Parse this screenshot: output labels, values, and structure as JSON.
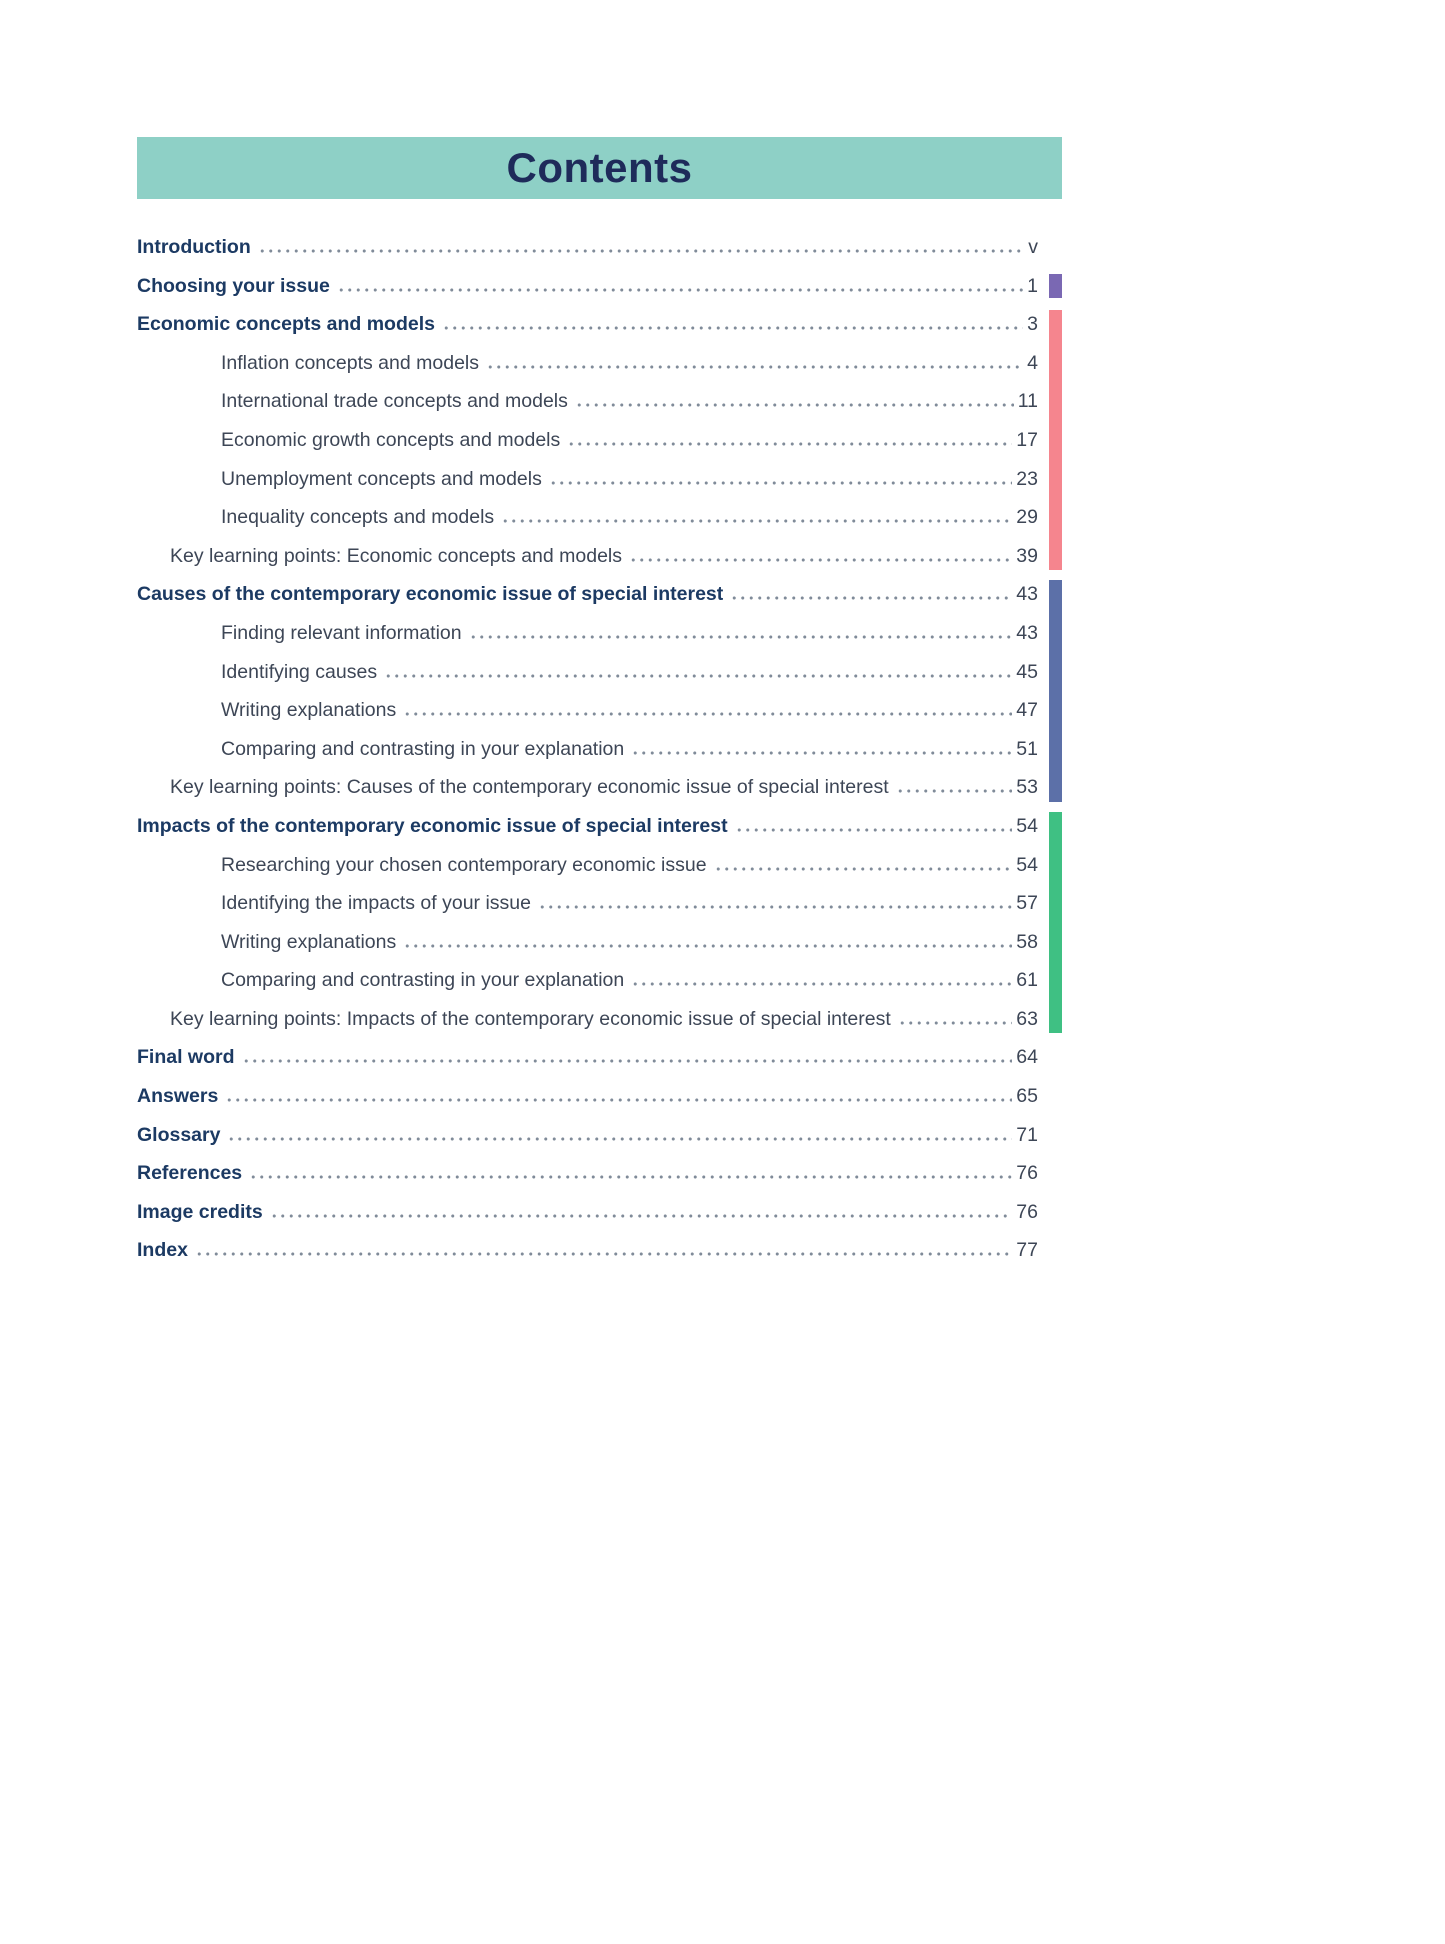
{
  "title": "Contents",
  "colors": {
    "banner": "#8ed0c6",
    "title": "#1e2b5a",
    "heading_text": "#1c3a63",
    "body_text": "#3d4656",
    "dots": "#808b99"
  },
  "toc": {
    "bar_colors": {
      "purple": "#7a68b3",
      "pink": "#f5858e",
      "blue": "#5c70a8",
      "green": "#3fc083"
    },
    "entries": [
      {
        "label": "Introduction",
        "page": "v",
        "level": 0,
        "bar": null
      },
      {
        "label": "Choosing your issue",
        "page": "1",
        "level": 0,
        "bar": "purple"
      },
      {
        "label": "Economic concepts and models",
        "page": "3",
        "level": 0,
        "bar": "pink"
      },
      {
        "label": "Inflation concepts and models",
        "page": "4",
        "level": 2,
        "bar": "pink"
      },
      {
        "label": "International trade concepts and models",
        "page": "11",
        "level": 2,
        "bar": "pink"
      },
      {
        "label": "Economic growth concepts and models",
        "page": "17",
        "level": 2,
        "bar": "pink"
      },
      {
        "label": "Unemployment concepts and models",
        "page": "23",
        "level": 2,
        "bar": "pink"
      },
      {
        "label": "Inequality concepts and models",
        "page": "29",
        "level": 2,
        "bar": "pink"
      },
      {
        "label": "Key learning points: Economic concepts and models",
        "page": "39",
        "level": 1,
        "bar": "pink"
      },
      {
        "label": "Causes of the contemporary economic issue of special interest",
        "page": "43",
        "level": 0,
        "bar": "blue"
      },
      {
        "label": "Finding relevant information",
        "page": "43",
        "level": 2,
        "bar": "blue"
      },
      {
        "label": "Identifying causes",
        "page": "45",
        "level": 2,
        "bar": "blue"
      },
      {
        "label": "Writing explanations",
        "page": "47",
        "level": 2,
        "bar": "blue"
      },
      {
        "label": "Comparing and contrasting in your explanation",
        "page": "51",
        "level": 2,
        "bar": "blue"
      },
      {
        "label": "Key learning points: Causes of the contemporary economic issue of special interest",
        "page": "53",
        "level": 1,
        "bar": "blue"
      },
      {
        "label": "Impacts of the contemporary economic issue of special interest",
        "page": "54",
        "level": 0,
        "bar": "green"
      },
      {
        "label": "Researching your chosen contemporary economic issue",
        "page": "54",
        "level": 2,
        "bar": "green"
      },
      {
        "label": "Identifying the impacts of your issue",
        "page": "57",
        "level": 2,
        "bar": "green"
      },
      {
        "label": "Writing explanations",
        "page": "58",
        "level": 2,
        "bar": "green"
      },
      {
        "label": "Comparing and contrasting in your explanation",
        "page": "61",
        "level": 2,
        "bar": "green"
      },
      {
        "label": "Key learning points: Impacts of the contemporary economic issue of special interest",
        "page": "63",
        "level": 1,
        "bar": "green"
      },
      {
        "label": "Final word",
        "page": "64",
        "level": 0,
        "bar": null
      },
      {
        "label": "Answers",
        "page": "65",
        "level": 0,
        "bar": null
      },
      {
        "label": "Glossary",
        "page": "71",
        "level": 0,
        "bar": null
      },
      {
        "label": "References",
        "page": "76",
        "level": 0,
        "bar": null
      },
      {
        "label": "Image credits",
        "page": "76",
        "level": 0,
        "bar": null
      },
      {
        "label": "Index",
        "page": "77",
        "level": 0,
        "bar": null
      }
    ]
  }
}
